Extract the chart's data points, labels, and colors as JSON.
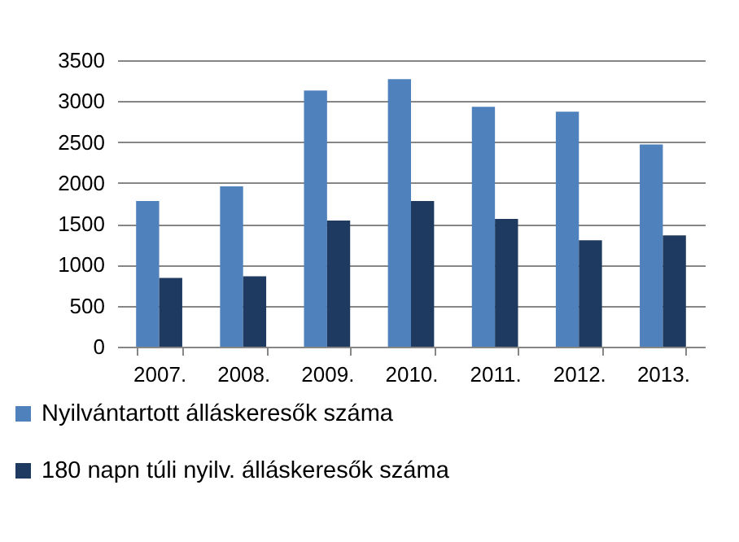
{
  "chart_data": {
    "type": "bar",
    "categories": [
      "2007.",
      "2008.",
      "2009.",
      "2010.",
      "2011.",
      "2012.",
      "2013."
    ],
    "series": [
      {
        "name": "Nyilvántartott álláskeresők száma",
        "color": "#4f81bd",
        "values": [
          1780,
          1960,
          3130,
          3270,
          2930,
          2870,
          2470
        ]
      },
      {
        "name": "180 napn túli nyilv. álláskeresők száma",
        "color": "#1f3a60",
        "values": [
          840,
          860,
          1540,
          1780,
          1560,
          1300,
          1360
        ]
      }
    ],
    "ylim": [
      0,
      3500
    ],
    "yticks": [
      0,
      500,
      1000,
      1500,
      2000,
      2500,
      3000,
      3500
    ],
    "grid": "y",
    "legend": "bottom"
  }
}
